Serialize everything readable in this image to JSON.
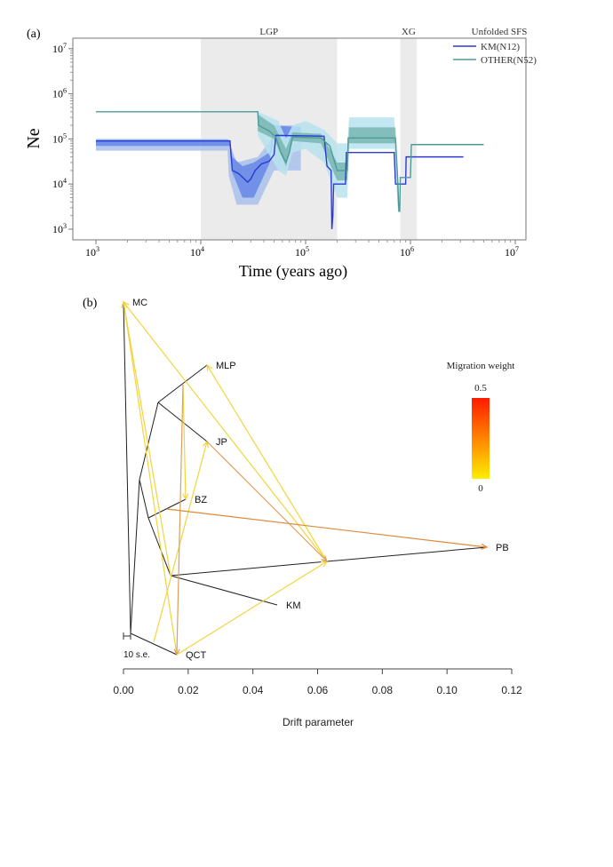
{
  "chart_data": [
    {
      "type": "line",
      "panel_label": "(a)",
      "title": "Unfolded SFS",
      "xlabel": "Time (years ago)",
      "ylabel": "Ne",
      "xscale": "log",
      "yscale": "log",
      "xlim": [
        600,
        11000000
      ],
      "ylim": [
        700,
        13000000
      ],
      "xticks": [
        {
          "v": 1000,
          "base": "10",
          "exp": "3"
        },
        {
          "v": 10000,
          "base": "10",
          "exp": "4"
        },
        {
          "v": 100000,
          "base": "10",
          "exp": "5"
        },
        {
          "v": 1000000,
          "base": "10",
          "exp": "6"
        },
        {
          "v": 10000000,
          "base": "10",
          "exp": "7"
        }
      ],
      "yticks": [
        {
          "v": 1000,
          "base": "10",
          "exp": "3"
        },
        {
          "v": 10000,
          "base": "10",
          "exp": "4"
        },
        {
          "v": 100000,
          "base": "10",
          "exp": "5"
        },
        {
          "v": 1000000,
          "base": "10",
          "exp": "6"
        },
        {
          "v": 10000000,
          "base": "10",
          "exp": "7"
        }
      ],
      "shaded_periods": [
        {
          "label": "LGP",
          "from": 10000,
          "to": 200000
        },
        {
          "label": "XG",
          "from": 800000,
          "to": 1150000
        }
      ],
      "legend_position": "top-right",
      "series": [
        {
          "name": "KM(N12)",
          "color": "#2b3bd0",
          "points": [
            [
              1000,
              90000
            ],
            [
              19000,
              90000
            ],
            [
              19500,
              40000
            ],
            [
              20000,
              20000
            ],
            [
              23000,
              17000
            ],
            [
              26000,
              13000
            ],
            [
              28000,
              11000
            ],
            [
              30000,
              13000
            ],
            [
              33000,
              20000
            ],
            [
              38000,
              28000
            ],
            [
              45000,
              32000
            ],
            [
              50000,
              45000
            ],
            [
              52000,
              120000
            ],
            [
              150000,
              115000
            ],
            [
              160000,
              25000
            ],
            [
              175000,
              20000
            ],
            [
              178000,
              1000
            ],
            [
              182000,
              2000
            ],
            [
              185000,
              10000
            ],
            [
              240000,
              10000
            ],
            [
              245000,
              50000
            ],
            [
              700000,
              50000
            ],
            [
              720000,
              10000
            ],
            [
              900000,
              10000
            ],
            [
              910000,
              40000
            ],
            [
              3200000,
              40000
            ]
          ],
          "band_outer": [
            [
              1000,
              55000,
              100000
            ],
            [
              18000,
              55000,
              100000
            ],
            [
              18500,
              15000,
              90000
            ],
            [
              22000,
              3500,
              30000
            ],
            [
              35000,
              3500,
              40000
            ],
            [
              50000,
              20000,
              120000
            ],
            [
              52000,
              20000,
              200000
            ],
            [
              90000,
              20000,
              200000
            ]
          ],
          "band_inner": [
            [
              1000,
              70000,
              95000
            ],
            [
              19000,
              70000,
              95000
            ],
            [
              20000,
              18000,
              40000
            ],
            [
              25000,
              5000,
              25000
            ],
            [
              32000,
              5000,
              30000
            ],
            [
              45000,
              28000,
              50000
            ],
            [
              50000,
              110000,
              200000
            ],
            [
              90000,
              110000,
              180000
            ]
          ]
        },
        {
          "name": "OTHER(N52)",
          "color": "#4f9a98",
          "points": [
            [
              1000,
              400000
            ],
            [
              35000,
              400000
            ],
            [
              35500,
              200000
            ],
            [
              45000,
              150000
            ],
            [
              52000,
              110000
            ],
            [
              58000,
              50000
            ],
            [
              65000,
              30000
            ],
            [
              70000,
              50000
            ],
            [
              75000,
              110000
            ],
            [
              140000,
              105000
            ],
            [
              170000,
              70000
            ],
            [
              190000,
              30000
            ],
            [
              200000,
              20000
            ],
            [
              250000,
              20000
            ],
            [
              255000,
              105000
            ],
            [
              720000,
              105000
            ],
            [
              760000,
              10000
            ],
            [
              775000,
              2500
            ],
            [
              790000,
              2500
            ],
            [
              800000,
              14000
            ],
            [
              1000000,
              14000
            ],
            [
              1020000,
              75000
            ],
            [
              5000000,
              75000
            ]
          ],
          "band_outer": [
            [
              35000,
              120000,
              400000
            ],
            [
              55000,
              20000,
              250000
            ],
            [
              65000,
              15000,
              100000
            ],
            [
              75000,
              50000,
              200000
            ],
            [
              100000,
              60000,
              250000
            ],
            [
              150000,
              30000,
              160000
            ],
            [
              200000,
              5000,
              80000
            ],
            [
              250000,
              5000,
              80000
            ],
            [
              260000,
              60000,
              300000
            ],
            [
              700000,
              60000,
              300000
            ],
            [
              760000,
              2500,
              12000
            ]
          ],
          "band_inner": [
            [
              35000,
              150000,
              350000
            ],
            [
              50000,
              100000,
              200000
            ],
            [
              65000,
              25000,
              60000
            ],
            [
              75000,
              90000,
              140000
            ],
            [
              140000,
              80000,
              130000
            ],
            [
              200000,
              12000,
              30000
            ],
            [
              250000,
              12000,
              30000
            ],
            [
              260000,
              80000,
              180000
            ],
            [
              720000,
              80000,
              180000
            ],
            [
              760000,
              3000,
              5000
            ]
          ]
        }
      ]
    },
    {
      "type": "tree",
      "panel_label": "(b)",
      "xlabel": "Drift parameter",
      "xlim": [
        0,
        0.12
      ],
      "xticks": [
        "0.00",
        "0.02",
        "0.04",
        "0.06",
        "0.08",
        "0.10",
        "0.12"
      ],
      "scale_bar": "10 s.e.",
      "legend": {
        "title": "Migration weight",
        "max": "0.5",
        "min": "0",
        "color_low": "#ffee00",
        "color_high": "#ff1a00"
      },
      "tips": [
        {
          "name": "MC",
          "drift": 0.0
        },
        {
          "name": "MLP",
          "drift": 0.026
        },
        {
          "name": "JP",
          "drift": 0.026
        },
        {
          "name": "BZ",
          "drift": 0.019
        },
        {
          "name": "PB",
          "drift": 0.112
        },
        {
          "name": "KM",
          "drift": 0.047
        },
        {
          "name": "QCT",
          "drift": 0.017
        }
      ],
      "migration_edges": [
        {
          "from": "PB-branch",
          "to": "MC",
          "weight": 0.05
        },
        {
          "from": "KM-node",
          "to": "MC",
          "weight": 0.05
        },
        {
          "from": "QCT",
          "to": "MC",
          "weight": 0.05
        },
        {
          "from": "PB-branch",
          "to": "MLP",
          "weight": 0.05
        },
        {
          "from": "QCT-branch",
          "to": "JP",
          "weight": 0.05
        },
        {
          "from": "MLP-branch",
          "to": "BZ",
          "weight": 0.08
        },
        {
          "from": "MLP-branch",
          "to": "QCT",
          "weight": 0.2
        },
        {
          "from": "BZ-branch",
          "to": "PB",
          "weight": 0.25
        },
        {
          "from": "QCT",
          "to": "PB-branch",
          "weight": 0.05
        },
        {
          "from": "JP",
          "to": "PB-branch",
          "weight": 0.2
        }
      ]
    }
  ]
}
